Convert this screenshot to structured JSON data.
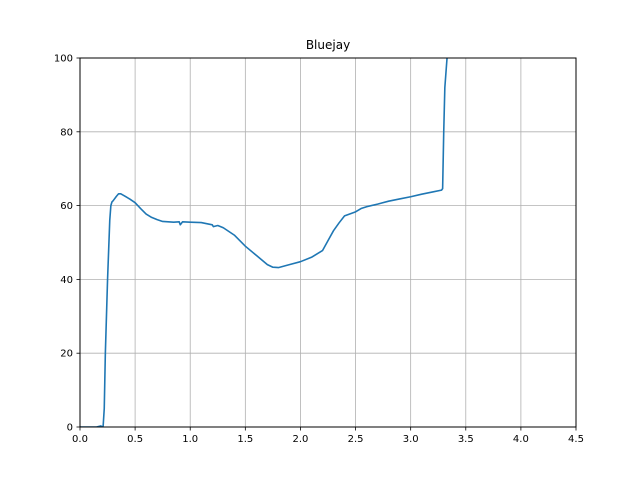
{
  "chart_data": {
    "type": "line",
    "title": "Bluejay",
    "xlabel": "",
    "ylabel": "",
    "xlim": [
      0.0,
      4.5
    ],
    "ylim": [
      0,
      100
    ],
    "xticks": [
      "0.0",
      "0.5",
      "1.0",
      "1.5",
      "2.0",
      "2.5",
      "3.0",
      "3.5",
      "4.0",
      "4.5"
    ],
    "yticks": [
      "0",
      "20",
      "40",
      "60",
      "80",
      "100"
    ],
    "grid": true,
    "legend": "none",
    "series": [
      {
        "color": "#1f77b4",
        "x": [
          0.0,
          0.15,
          0.19,
          0.2,
          0.21,
          0.22,
          0.23,
          0.25,
          0.27,
          0.28,
          0.29,
          0.3,
          0.33,
          0.35,
          0.37,
          0.4,
          0.45,
          0.5,
          0.55,
          0.6,
          0.65,
          0.7,
          0.75,
          0.8,
          0.85,
          0.9,
          0.91,
          0.93,
          1.0,
          1.1,
          1.2,
          1.21,
          1.25,
          1.3,
          1.4,
          1.5,
          1.6,
          1.7,
          1.75,
          1.8,
          1.85,
          1.9,
          2.0,
          2.1,
          2.2,
          2.25,
          2.3,
          2.35,
          2.4,
          2.5,
          2.55,
          2.6,
          2.7,
          2.8,
          2.9,
          3.0,
          3.1,
          3.2,
          3.28,
          3.29,
          3.3,
          3.31,
          3.33
        ],
        "y": [
          0.0,
          0.0,
          0.3,
          0.0,
          0.3,
          5.0,
          20.0,
          40.0,
          56.0,
          60.0,
          61.0,
          61.3,
          62.5,
          63.2,
          63.2,
          62.7,
          61.8,
          60.8,
          59.2,
          57.7,
          56.8,
          56.2,
          55.7,
          55.6,
          55.5,
          55.6,
          54.8,
          55.6,
          55.5,
          55.4,
          54.8,
          54.3,
          54.6,
          54.0,
          52.0,
          49.0,
          46.5,
          44.0,
          43.3,
          43.2,
          43.6,
          44.0,
          44.8,
          46.0,
          47.8,
          50.5,
          53.2,
          55.3,
          57.2,
          58.3,
          59.2,
          59.7,
          60.4,
          61.2,
          61.8,
          62.4,
          63.1,
          63.7,
          64.2,
          64.6,
          80.0,
          92.0,
          100.0
        ]
      }
    ]
  }
}
